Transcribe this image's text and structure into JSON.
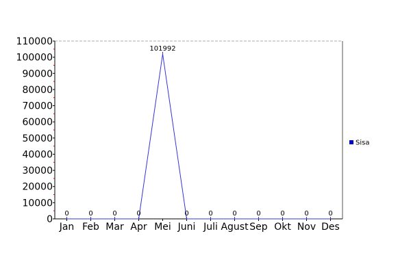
{
  "chart_data": {
    "type": "line",
    "categories": [
      "Jan",
      "Feb",
      "Mar",
      "Apr",
      "Mei",
      "Juni",
      "Juli",
      "Agust",
      "Sep",
      "Okt",
      "Nov",
      "Des"
    ],
    "series": [
      {
        "name": "Sisa",
        "values": [
          0,
          0,
          0,
          0,
          101992,
          0,
          0,
          0,
          0,
          0,
          0,
          0
        ],
        "data_labels": [
          "0",
          "0",
          "0",
          "0",
          "101992",
          "0",
          "0",
          "0",
          "0",
          "0",
          "0",
          "0"
        ]
      }
    ],
    "y_ticks": [
      0,
      10000,
      20000,
      30000,
      40000,
      50000,
      60000,
      70000,
      80000,
      90000,
      100000,
      110000
    ],
    "ylim": [
      0,
      110000
    ],
    "title": "",
    "xlabel": "",
    "ylabel": "",
    "grid": false,
    "legend_position": "right",
    "colors": {
      "series": "#3333dd",
      "legend_marker": "#0000cc",
      "axis": "#000000",
      "top_border": "#aaaaaa",
      "tick_marker": "#cc0000"
    }
  }
}
